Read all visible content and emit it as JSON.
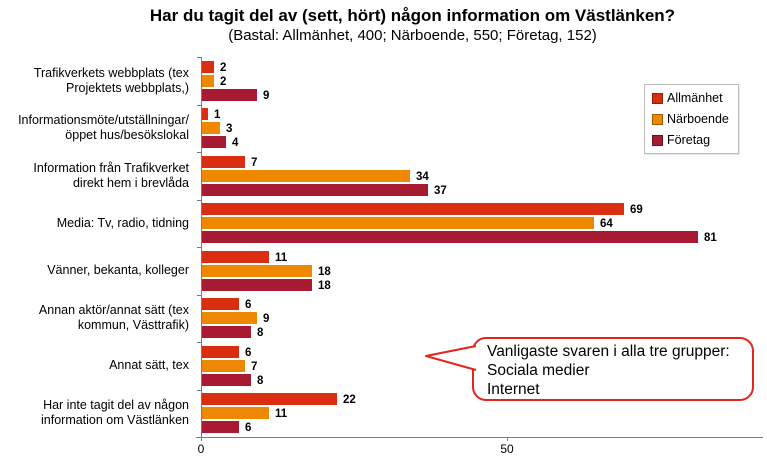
{
  "chart_data": {
    "type": "bar",
    "orientation": "horizontal",
    "title": "Har du tagit del av (sett, hört) någon information om Västlänken?",
    "subtitle": "(Bastal: Allmänhet, 400; Närboende, 550; Företag, 152)",
    "categories": [
      "Trafikverkets webbplats (tex Projektets webbplats,)",
      "Informationsmöte/utställningar/ öppet hus/besökslokal",
      "Information från Trafikverket direkt hem i brevlåda",
      "Media: Tv, radio, tidning",
      "Vänner, bekanta, kolleger",
      "Annan aktör/annat sätt (tex kommun, Västtrafik)",
      "Annat sätt, tex",
      "Har inte tagit del av någon information om Västlänken"
    ],
    "category_label_lines": [
      [
        "Trafikverkets webbplats (tex",
        "Projektets webbplats,)"
      ],
      [
        "Informationsmöte/utställningar/",
        "öppet hus/besökslokal"
      ],
      [
        "Information från Trafikverket",
        "direkt hem i brevlåda"
      ],
      [
        "Media: Tv, radio, tidning"
      ],
      [
        "Vänner, bekanta, kolleger"
      ],
      [
        "Annan aktör/annat sätt (tex",
        "kommun, Västtrafik)"
      ],
      [
        "Annat sätt, tex"
      ],
      [
        "Har inte tagit del av någon",
        "information om Västlänken"
      ]
    ],
    "series": [
      {
        "name": "Allmänhet",
        "color": "#d92e10",
        "values": [
          2,
          1,
          7,
          69,
          11,
          6,
          6,
          22
        ]
      },
      {
        "name": "Närboende",
        "color": "#ee8800",
        "values": [
          2,
          3,
          34,
          64,
          18,
          9,
          7,
          11
        ]
      },
      {
        "name": "Företag",
        "color": "#a81a32",
        "values": [
          9,
          4,
          37,
          81,
          18,
          8,
          8,
          6
        ]
      }
    ],
    "xlim": [
      0,
      91.5
    ],
    "x_ticks": [
      0,
      50
    ],
    "grid": false,
    "legend_position": "top-right",
    "annotation": {
      "lines": [
        "Vanligaste svaren i alla tre grupper:",
        "Sociala medier",
        "Internet"
      ],
      "border_color": "#e3251b"
    },
    "axis_color": "#7a7a7a"
  }
}
